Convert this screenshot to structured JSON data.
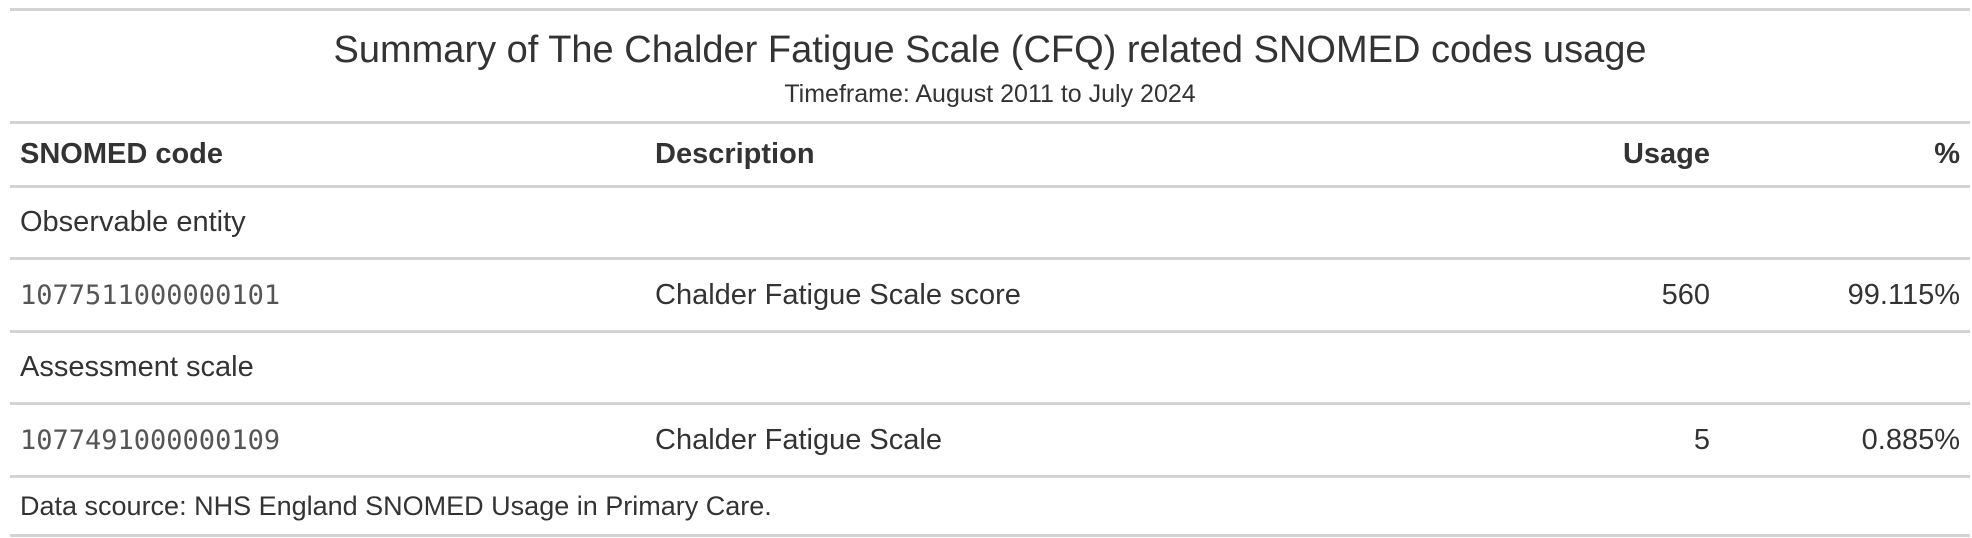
{
  "header": {
    "title": "Summary of The Chalder Fatigue Scale (CFQ) related SNOMED codes usage",
    "subtitle": "Timeframe: August 2011 to July 2024"
  },
  "columns": {
    "code": "SNOMED code",
    "description": "Description",
    "usage": "Usage",
    "percent": "%"
  },
  "groups": [
    {
      "label": "Observable entity",
      "row": {
        "code": "1077511000000101",
        "description": "Chalder Fatigue Scale score",
        "usage": "560",
        "percent": "99.115%"
      }
    },
    {
      "label": "Assessment scale",
      "row": {
        "code": "1077491000000109",
        "description": "Chalder Fatigue Scale",
        "usage": "5",
        "percent": "0.885%"
      }
    }
  ],
  "footer": {
    "source": "Data scource: NHS England SNOMED Usage in Primary Care."
  }
}
